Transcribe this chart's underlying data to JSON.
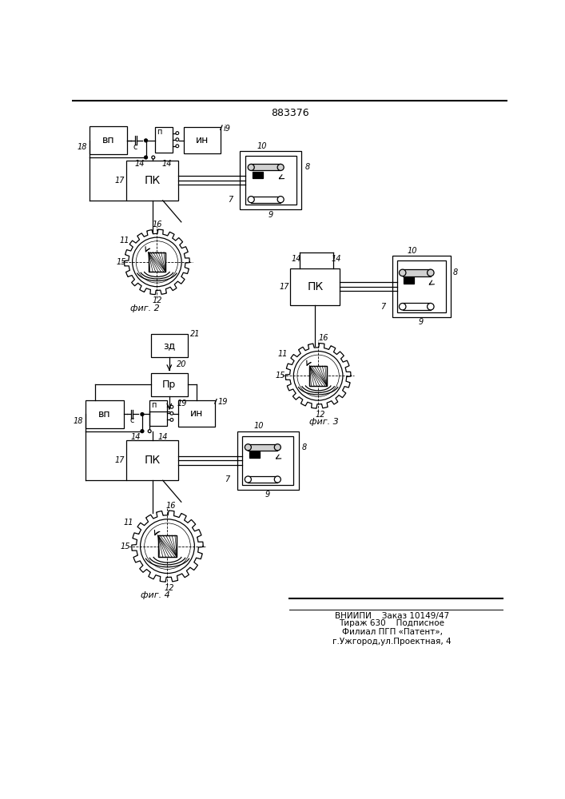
{
  "title": "883376",
  "bg_color": "#ffffff",
  "line_color": "#000000",
  "footer_line1": "ВНИИПИ    Заказ 10149/47",
  "footer_line2": "Тираж 630    Подписное",
  "footer_line3": "Филиал ПГП «Патент»,",
  "footer_line4": "г.Ужгород,ул.Проектная, 4"
}
